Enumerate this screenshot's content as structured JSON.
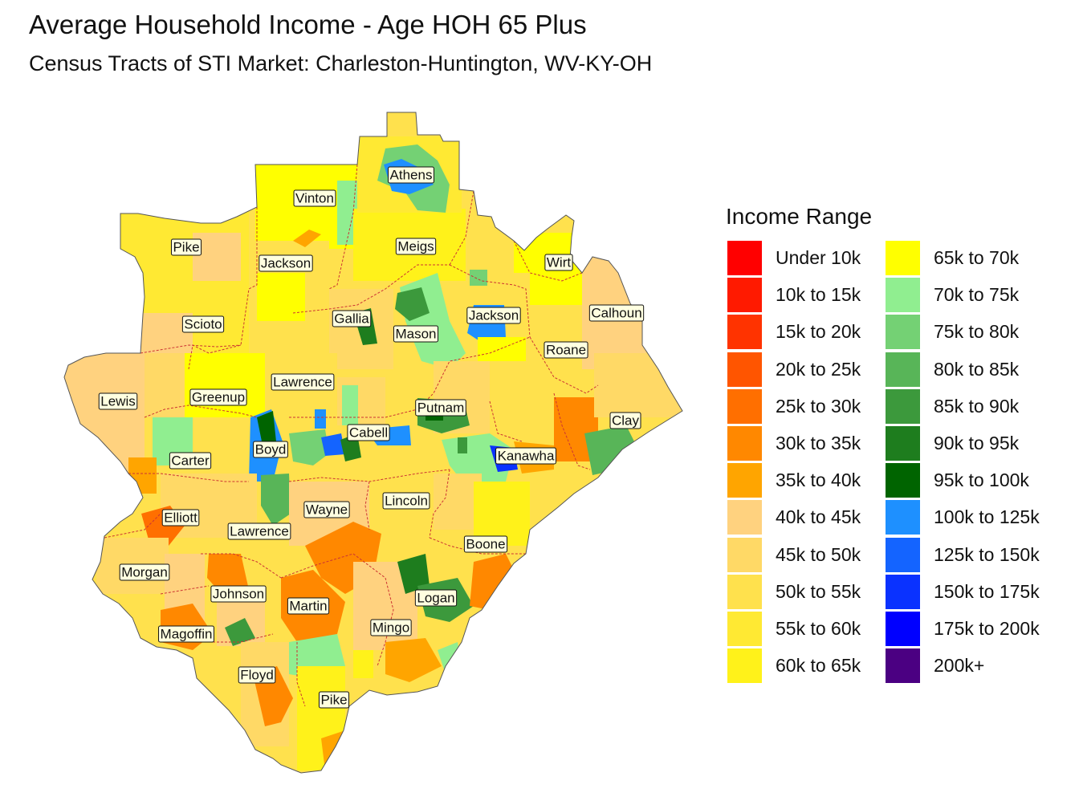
{
  "title": "Average Household Income - Age HOH 65 Plus",
  "subtitle": "Census Tracts of STI Market: Charleston-Huntington, WV-KY-OH",
  "legend": {
    "title": "Income Range",
    "items": [
      {
        "label": "Under 10k",
        "color": "#ff0000"
      },
      {
        "label": "10k to 15k",
        "color": "#ff1a00"
      },
      {
        "label": "15k to 20k",
        "color": "#ff3300"
      },
      {
        "label": "20k to 25k",
        "color": "#ff5500"
      },
      {
        "label": "25k to 30k",
        "color": "#ff6f00"
      },
      {
        "label": "30k to 35k",
        "color": "#ff8800"
      },
      {
        "label": "35k to 40k",
        "color": "#ffa500"
      },
      {
        "label": "40k to 45k",
        "color": "#ffd27f"
      },
      {
        "label": "45k to 50k",
        "color": "#ffd966"
      },
      {
        "label": "50k to 55k",
        "color": "#ffe14d"
      },
      {
        "label": "55k to 60k",
        "color": "#ffe933"
      },
      {
        "label": "60k to 65k",
        "color": "#fff21a"
      },
      {
        "label": "65k to 70k",
        "color": "#ffff00"
      },
      {
        "label": "70k to 75k",
        "color": "#90ee90"
      },
      {
        "label": "75k to 80k",
        "color": "#74d174"
      },
      {
        "label": "80k to 85k",
        "color": "#58b558"
      },
      {
        "label": "85k to 90k",
        "color": "#3c993c"
      },
      {
        "label": "90k to 95k",
        "color": "#1e7d1e"
      },
      {
        "label": "95k to 100k",
        "color": "#006400"
      },
      {
        "label": "100k to 125k",
        "color": "#1e90ff"
      },
      {
        "label": "125k to 150k",
        "color": "#1464ff"
      },
      {
        "label": "150k to 175k",
        "color": "#0a32ff"
      },
      {
        "label": "175k to 200k",
        "color": "#0000ff"
      },
      {
        "label": "200k+",
        "color": "#4b0082"
      }
    ]
  },
  "counties": [
    "Athens",
    "Vinton",
    "Pike",
    "Jackson",
    "Meigs",
    "Wirt",
    "Gallia",
    "Jackson",
    "Calhoun",
    "Scioto",
    "Mason",
    "Roane",
    "Lawrence",
    "Lewis",
    "Greenup",
    "Putnam",
    "Clay",
    "Cabell",
    "Boyd",
    "Kanawha",
    "Carter",
    "Lincoln",
    "Elliott",
    "Wayne",
    "Lawrence",
    "Boone",
    "Morgan",
    "Logan",
    "Johnson",
    "Martin",
    "Mingo",
    "Magoffin",
    "Floyd",
    "Pike"
  ],
  "colors": {
    "region_border": "#ffffff",
    "county_border": "#cc3333",
    "label_fill": "#ffffe0"
  }
}
